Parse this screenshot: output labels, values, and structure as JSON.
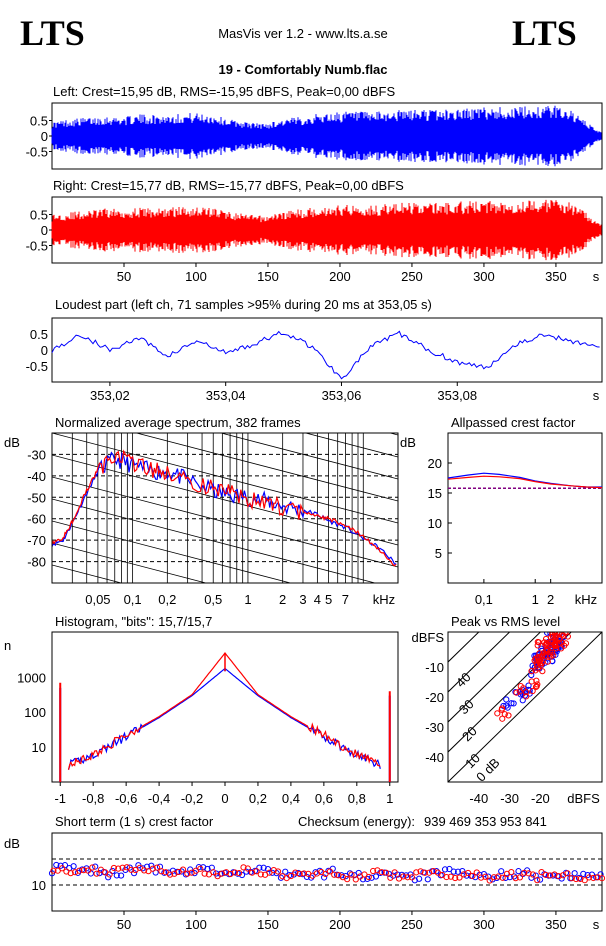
{
  "header": {
    "logo": "LTS",
    "app_title": "MasVis ver 1.2 - www.lts.a.se",
    "track_title": "19 - Comfortably Numb.flac",
    "checksum_label": "Checksum (energy):",
    "checksum_value": "939 469 353 953 841"
  },
  "colors": {
    "left": "#0000ff",
    "right": "#ff0000",
    "axis": "#000000"
  },
  "chart_data": [
    {
      "id": "left-waveform",
      "type": "area",
      "title": "Left: Crest=15,95 dB, RMS=-15,95 dBFS, Peak=0,00 dBFS",
      "y_ticks": [
        "0.5",
        "0",
        "-0.5"
      ],
      "ylim": [
        -1,
        1
      ],
      "xlim": [
        0,
        382
      ],
      "series": [
        {
          "color": "#0000ff",
          "envelope_abs": [
            0.45,
            0.55,
            0.6,
            0.65,
            0.62,
            0.7,
            0.68,
            0.72,
            0.75,
            0.7,
            0.55,
            0.45,
            0.4,
            0.55,
            0.62,
            0.72,
            0.78,
            0.8,
            0.76,
            0.82,
            0.85,
            0.88,
            0.86,
            0.9,
            0.92,
            0.95,
            0.93,
            0.97,
            1.0,
            0.96,
            0.5,
            0.1
          ]
        }
      ]
    },
    {
      "id": "right-waveform",
      "type": "area",
      "title": "Right: Crest=15,77 dB, RMS=-15,77 dBFS, Peak=0,00 dBFS",
      "y_ticks": [
        "0.5",
        "0",
        "-0.5"
      ],
      "x_ticks": [
        "50",
        "100",
        "150",
        "200",
        "250",
        "300",
        "350"
      ],
      "x_unit": "s",
      "ylim": [
        -1,
        1
      ],
      "xlim": [
        0,
        382
      ],
      "series": [
        {
          "color": "#ff0000",
          "envelope_abs": [
            0.5,
            0.58,
            0.62,
            0.7,
            0.68,
            0.72,
            0.7,
            0.75,
            0.78,
            0.74,
            0.6,
            0.5,
            0.45,
            0.6,
            0.68,
            0.76,
            0.8,
            0.84,
            0.8,
            0.86,
            0.88,
            0.9,
            0.88,
            0.92,
            0.94,
            0.96,
            0.95,
            0.98,
            1.0,
            0.97,
            0.6,
            0.15
          ]
        }
      ]
    },
    {
      "id": "loudest-part",
      "type": "line",
      "title": "Loudest part (left  ch, 71 samples >95% during 20 ms at 353,05 s)",
      "y_ticks": [
        "0.5",
        "0",
        "-0.5"
      ],
      "x_ticks": [
        "353,02",
        "353,04",
        "353,06",
        "353,08"
      ],
      "x_unit": "s",
      "xlim": [
        353.01,
        353.105
      ],
      "ylim": [
        -1,
        1
      ],
      "series": [
        {
          "color": "#0000ff",
          "x": [
            353.01,
            353.015,
            353.02,
            353.025,
            353.03,
            353.035,
            353.04,
            353.045,
            353.05,
            353.055,
            353.06,
            353.065,
            353.07,
            353.075,
            353.08,
            353.085,
            353.09,
            353.095,
            353.1,
            353.105
          ],
          "y": [
            0.0,
            0.5,
            0.0,
            0.4,
            -0.2,
            0.3,
            -0.1,
            0.2,
            0.6,
            0.1,
            -0.95,
            0.1,
            0.55,
            0.0,
            -0.4,
            -0.6,
            0.2,
            0.5,
            0.3,
            0.1
          ]
        }
      ]
    },
    {
      "id": "avg-spectrum",
      "type": "line",
      "title": "Normalized average spectrum, 382 frames",
      "ylabel": "dB",
      "y_ticks": [
        "-30",
        "-40",
        "-50",
        "-60",
        "-70",
        "-80"
      ],
      "x_ticks": [
        "0,05",
        "0,1",
        "0,2",
        "0,5",
        "1",
        "2",
        "3",
        "4",
        "5",
        "7"
      ],
      "x_unit": "kHz",
      "xscale": "log",
      "xlim": [
        0.02,
        20
      ],
      "ylim": [
        -90,
        -20
      ],
      "series": [
        {
          "color": "#0000ff",
          "x": [
            0.02,
            0.025,
            0.03,
            0.04,
            0.05,
            0.07,
            0.1,
            0.15,
            0.2,
            0.3,
            0.5,
            0.7,
            1,
            1.5,
            2,
            3,
            4,
            5,
            7,
            10,
            14,
            20
          ],
          "y": [
            -72,
            -70,
            -62,
            -48,
            -38,
            -32,
            -35,
            -38,
            -38,
            -42,
            -47,
            -49,
            -50,
            -52,
            -54,
            -56,
            -58,
            -61,
            -64,
            -69,
            -74,
            -82
          ]
        },
        {
          "color": "#ff0000",
          "x": [
            0.02,
            0.025,
            0.03,
            0.04,
            0.05,
            0.07,
            0.1,
            0.15,
            0.2,
            0.3,
            0.5,
            0.7,
            1,
            1.5,
            2,
            3,
            4,
            5,
            7,
            10,
            14,
            20
          ],
          "y": [
            -71,
            -69,
            -61,
            -47,
            -37,
            -31,
            -34,
            -37,
            -39,
            -43,
            -46,
            -48,
            -51,
            -53,
            -55,
            -57,
            -59,
            -60,
            -63,
            -68,
            -75,
            -83
          ]
        }
      ]
    },
    {
      "id": "allpassed-crest",
      "type": "line",
      "title": "Allpassed crest factor",
      "ylabel": "dB",
      "y_ticks": [
        "20",
        "15",
        "10",
        "5"
      ],
      "x_ticks": [
        "0,1",
        "1",
        "2"
      ],
      "x_unit": "kHz",
      "xscale": "log",
      "xlim": [
        0.02,
        20
      ],
      "ylim": [
        0,
        25
      ],
      "reference_db": 15.8,
      "series": [
        {
          "color": "#0000ff",
          "x": [
            0.02,
            0.05,
            0.1,
            0.2,
            0.5,
            1,
            2,
            5,
            10,
            20
          ],
          "y": [
            17.5,
            18.0,
            18.3,
            18.1,
            17.6,
            17.0,
            16.6,
            16.2,
            16.0,
            16.0
          ]
        },
        {
          "color": "#ff0000",
          "x": [
            0.02,
            0.05,
            0.1,
            0.2,
            0.5,
            1,
            2,
            5,
            10,
            20
          ],
          "y": [
            17.3,
            17.6,
            17.8,
            17.7,
            17.4,
            16.9,
            16.5,
            16.2,
            16.0,
            15.9
          ]
        }
      ]
    },
    {
      "id": "histogram",
      "type": "line",
      "title": "Histogram, \"bits\": 15,7/15,7",
      "ylabel": "n",
      "y_ticks": [
        "1000",
        "100",
        "10"
      ],
      "yscale": "log",
      "x_ticks": [
        "-1",
        "-0,8",
        "-0,6",
        "-0,4",
        "-0,2",
        "0",
        "0,2",
        "0,4",
        "0,6",
        "0,8",
        "1"
      ],
      "xlim": [
        -1.05,
        1.05
      ],
      "ylim": [
        1,
        20000
      ],
      "series": [
        {
          "color": "#0000ff",
          "x": [
            -1,
            -0.95,
            -0.8,
            -0.6,
            -0.4,
            -0.2,
            0,
            0.2,
            0.4,
            0.6,
            0.8,
            0.95,
            1
          ],
          "y": [
            500,
            3,
            6,
            20,
            70,
            300,
            1800,
            300,
            70,
            20,
            6,
            3,
            300
          ]
        },
        {
          "color": "#ff0000",
          "x": [
            -1,
            -0.95,
            -0.8,
            -0.6,
            -0.4,
            -0.2,
            0,
            0.2,
            0.4,
            0.6,
            0.8,
            0.95,
            1
          ],
          "y": [
            700,
            3,
            6,
            22,
            75,
            320,
            5000,
            320,
            75,
            22,
            6,
            3,
            400
          ]
        }
      ]
    },
    {
      "id": "peak-vs-rms",
      "type": "scatter",
      "title": "Peak vs RMS level",
      "y_ticks": [
        "dBFS",
        "-10",
        "-20",
        "-30",
        "-40"
      ],
      "x_ticks": [
        "-40",
        "-30",
        "-20",
        "dBFS"
      ],
      "diag_labels": [
        "40",
        "30",
        "20",
        "10",
        "0 dB"
      ],
      "xlim": [
        -50,
        0
      ],
      "ylim": [
        -50,
        0
      ],
      "series": [
        {
          "color": "#0000ff",
          "x": [
            -30,
            -27,
            -24,
            -22,
            -21,
            -20,
            -19,
            -18,
            -17,
            -16,
            -15,
            -14,
            -18,
            -20,
            -16
          ],
          "y": [
            -24,
            -21,
            -19,
            -13,
            -11,
            -10,
            -9,
            -8,
            -7,
            -5,
            -4,
            -3,
            -4,
            -6,
            -2
          ]
        },
        {
          "color": "#ff0000",
          "x": [
            -32,
            -26,
            -23,
            -21,
            -20,
            -19,
            -18,
            -17,
            -16,
            -15,
            -14,
            -13,
            -17,
            -19,
            -15
          ],
          "y": [
            -27,
            -20,
            -18,
            -12,
            -10,
            -9,
            -8,
            -6,
            -5,
            -4,
            -3,
            -2,
            -3,
            -5,
            -1
          ]
        }
      ]
    },
    {
      "id": "short-term-crest",
      "type": "scatter",
      "title": "Short term (1 s) crest factor",
      "ylabel": "dB",
      "y_ticks": [
        "10"
      ],
      "x_ticks": [
        "50",
        "100",
        "150",
        "200",
        "250",
        "300",
        "350"
      ],
      "x_unit": "s",
      "xlim": [
        0,
        382
      ],
      "ylim": [
        0,
        30
      ],
      "series": [
        {
          "color": "#0000ff",
          "y": [
            16,
            17,
            15,
            16,
            14,
            15,
            16,
            17,
            15,
            14,
            15,
            16,
            15,
            14,
            15,
            16,
            14,
            15,
            13,
            14,
            15,
            14,
            13,
            14,
            15,
            14,
            13,
            14,
            15,
            14,
            13,
            13,
            14,
            15,
            14,
            13,
            14,
            13,
            14,
            13
          ]
        },
        {
          "color": "#ff0000",
          "y": [
            17,
            16,
            16,
            15,
            15,
            16,
            17,
            16,
            15,
            15,
            16,
            15,
            14,
            15,
            16,
            15,
            14,
            14,
            14,
            15,
            14,
            13,
            14,
            15,
            14,
            13,
            14,
            14,
            14,
            13,
            14,
            13,
            14,
            14,
            13,
            14,
            13,
            13,
            13,
            14
          ]
        }
      ]
    }
  ]
}
